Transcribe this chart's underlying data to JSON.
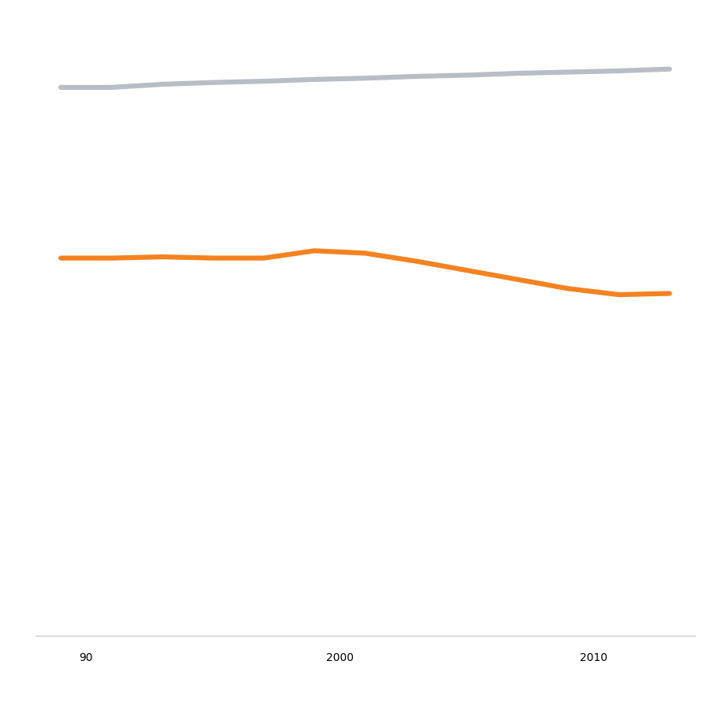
{
  "white_workers": {
    "color": "#b8bec5",
    "years": [
      1989,
      1991,
      1993,
      1995,
      1997,
      1999,
      2001,
      2003,
      2005,
      2007,
      2009,
      2011,
      2013
    ],
    "values": [
      0.88,
      0.88,
      0.885,
      0.888,
      0.89,
      0.893,
      0.895,
      0.898,
      0.9,
      0.903,
      0.905,
      0.907,
      0.91
    ]
  },
  "poc_workers": {
    "color": "#f4821e",
    "years": [
      1989,
      1991,
      1993,
      1995,
      1997,
      1999,
      2001,
      2003,
      2005,
      2007,
      2009,
      2011,
      2013
    ],
    "values": [
      0.6,
      0.6,
      0.602,
      0.6,
      0.6,
      0.612,
      0.608,
      0.595,
      0.58,
      0.565,
      0.55,
      0.54,
      0.542
    ]
  },
  "xlim": [
    1988,
    2014
  ],
  "ylim": [
    0.0,
    1.0
  ],
  "xticks": [
    1990,
    2000,
    2010
  ],
  "xticklabels": [
    "90",
    "2000",
    "2010"
  ],
  "line_width": 4.5,
  "background_color": "#ffffff",
  "axis_color": "#cccccc",
  "tick_color": "#999999",
  "tick_fontsize": 24
}
